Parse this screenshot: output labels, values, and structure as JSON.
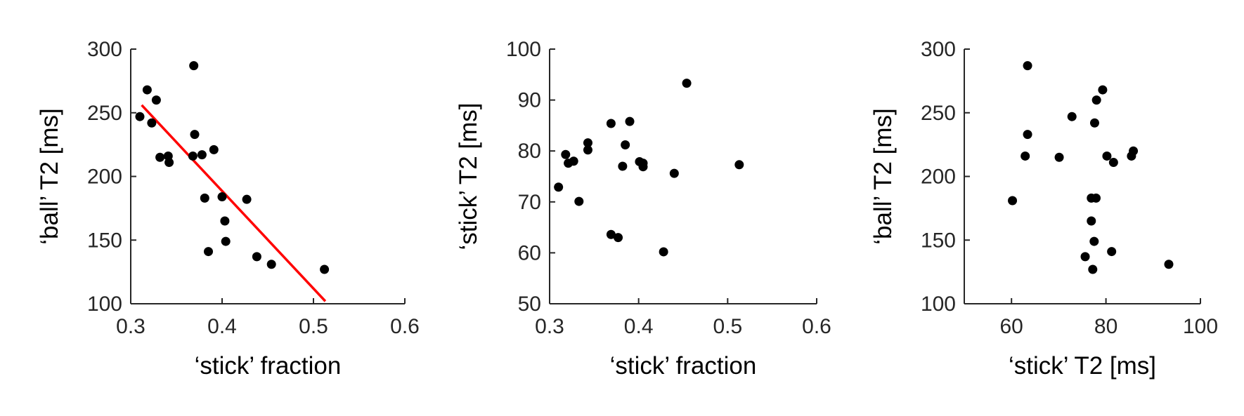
{
  "chart_data": [
    {
      "type": "scatter",
      "xlabel": "‘stick’ fraction",
      "ylabel": "‘ball’ T2 [ms]",
      "xlim": [
        0.3,
        0.6
      ],
      "ylim": [
        100,
        300
      ],
      "xticks": [
        0.3,
        0.4,
        0.5,
        0.6
      ],
      "xtick_labels": [
        "0.3",
        "0.4",
        "0.5",
        "0.6"
      ],
      "yticks": [
        100,
        150,
        200,
        250,
        300
      ],
      "ytick_labels": [
        "100",
        "150",
        "200",
        "250",
        "300"
      ],
      "grid": false,
      "series": [
        {
          "points": [
            [
              0.31,
              247
            ],
            [
              0.318,
              268
            ],
            [
              0.323,
              242
            ],
            [
              0.328,
              260
            ],
            [
              0.332,
              215
            ],
            [
              0.341,
              216
            ],
            [
              0.342,
              211
            ],
            [
              0.368,
              216
            ],
            [
              0.369,
              287
            ],
            [
              0.37,
              233
            ],
            [
              0.378,
              217
            ],
            [
              0.381,
              183
            ],
            [
              0.385,
              141
            ],
            [
              0.391,
              221
            ],
            [
              0.4,
              184
            ],
            [
              0.403,
              165
            ],
            [
              0.404,
              149
            ],
            [
              0.427,
              182
            ],
            [
              0.438,
              137
            ],
            [
              0.454,
              131
            ],
            [
              0.512,
              127
            ]
          ],
          "color": "#000000"
        }
      ],
      "fit_line": {
        "x": [
          0.312,
          0.513
        ],
        "y": [
          256,
          102
        ],
        "color": "#ff0000"
      }
    },
    {
      "type": "scatter",
      "xlabel": "‘stick’ fraction",
      "ylabel": "‘stick’ T2 [ms]",
      "xlim": [
        0.3,
        0.6
      ],
      "ylim": [
        50,
        100
      ],
      "xticks": [
        0.3,
        0.4,
        0.5,
        0.6
      ],
      "xtick_labels": [
        "0.3",
        "0.4",
        "0.5",
        "0.6"
      ],
      "yticks": [
        50,
        60,
        70,
        80,
        90,
        100
      ],
      "ytick_labels": [
        "50",
        "60",
        "70",
        "80",
        "90",
        "100"
      ],
      "grid": false,
      "series": [
        {
          "points": [
            [
              0.31,
              72.9
            ],
            [
              0.318,
              79.3
            ],
            [
              0.321,
              77.6
            ],
            [
              0.327,
              78
            ],
            [
              0.333,
              70.1
            ],
            [
              0.343,
              81.6
            ],
            [
              0.343,
              80.2
            ],
            [
              0.369,
              85.4
            ],
            [
              0.369,
              63.6
            ],
            [
              0.377,
              63
            ],
            [
              0.382,
              77
            ],
            [
              0.385,
              81.2
            ],
            [
              0.39,
              85.8
            ],
            [
              0.401,
              77.9
            ],
            [
              0.405,
              76.9
            ],
            [
              0.405,
              77.6
            ],
            [
              0.428,
              60.2
            ],
            [
              0.44,
              75.6
            ],
            [
              0.454,
              93.3
            ],
            [
              0.513,
              77.3
            ]
          ],
          "color": "#000000"
        }
      ]
    },
    {
      "type": "scatter",
      "xlabel": "‘stick’ T2 [ms]",
      "ylabel": "‘ball’ T2 [ms]",
      "xlim": [
        50,
        100
      ],
      "ylim": [
        100,
        300
      ],
      "xticks": [
        60,
        80,
        100
      ],
      "xtick_labels": [
        "60",
        "80",
        "100"
      ],
      "yticks": [
        100,
        150,
        200,
        250,
        300
      ],
      "ytick_labels": [
        "100",
        "150",
        "200",
        "250",
        "300"
      ],
      "grid": false,
      "series": [
        {
          "points": [
            [
              60.2,
              181
            ],
            [
              62.9,
              216
            ],
            [
              63.4,
              287
            ],
            [
              63.4,
              233
            ],
            [
              70.1,
              215
            ],
            [
              72.8,
              247
            ],
            [
              76.9,
              183
            ],
            [
              76.9,
              165
            ],
            [
              75.6,
              137
            ],
            [
              77.2,
              127
            ],
            [
              77.5,
              149
            ],
            [
              77.6,
              242
            ],
            [
              77.9,
              183
            ],
            [
              78,
              260
            ],
            [
              79.3,
              268
            ],
            [
              80.2,
              216
            ],
            [
              81.2,
              141
            ],
            [
              81.6,
              211
            ],
            [
              85.4,
              216
            ],
            [
              85.8,
              220
            ],
            [
              93.3,
              131
            ]
          ],
          "color": "#000000"
        }
      ]
    }
  ]
}
